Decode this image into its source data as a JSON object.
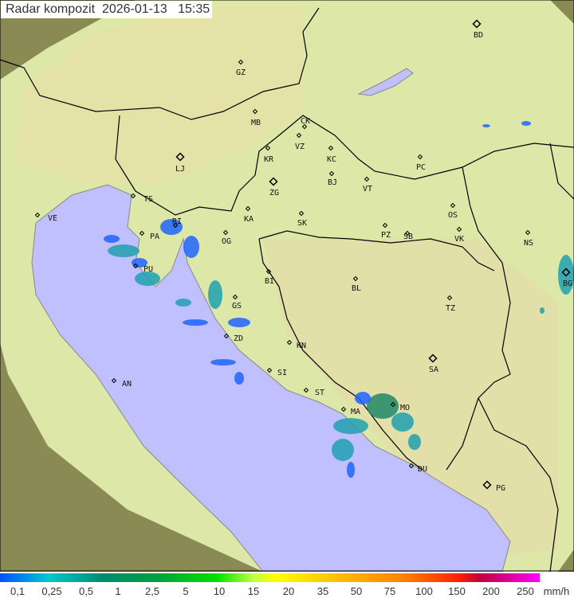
{
  "title": "Radar kompozit  2026-01-13   15:35",
  "colors": {
    "sea": "#c0c0ff",
    "land": "#dde8a8",
    "outside": "#8a8a55",
    "border": "#000000",
    "coast": "#888888",
    "rain_light": "#1e64ff",
    "rain_mid": "#20a0b0",
    "rain_heavy": "#208868"
  },
  "cities": [
    {
      "code": "GZ",
      "capital": false
    },
    {
      "code": "BD",
      "capital": true
    },
    {
      "code": "MB",
      "capital": false
    },
    {
      "code": "CK",
      "capital": false
    },
    {
      "code": "VZ",
      "capital": false
    },
    {
      "code": "KR",
      "capital": false
    },
    {
      "code": "KC",
      "capital": false
    },
    {
      "code": "PC",
      "capital": false
    },
    {
      "code": "LJ",
      "capital": true
    },
    {
      "code": "BJ",
      "capital": false
    },
    {
      "code": "ZG",
      "capital": true
    },
    {
      "code": "VT",
      "capital": false
    },
    {
      "code": "TS",
      "capital": false
    },
    {
      "code": "VE",
      "capital": false
    },
    {
      "code": "KA",
      "capital": false
    },
    {
      "code": "SK",
      "capital": false
    },
    {
      "code": "OS",
      "capital": false
    },
    {
      "code": "RI",
      "capital": false
    },
    {
      "code": "PZ",
      "capital": false
    },
    {
      "code": "SB",
      "capital": false
    },
    {
      "code": "VK",
      "capital": false
    },
    {
      "code": "NS",
      "capital": false
    },
    {
      "code": "PA",
      "capital": false
    },
    {
      "code": "OG",
      "capital": false
    },
    {
      "code": "PU",
      "capital": false
    },
    {
      "code": "BI",
      "capital": false
    },
    {
      "code": "BL",
      "capital": false
    },
    {
      "code": "BG",
      "capital": true
    },
    {
      "code": "GS",
      "capital": false
    },
    {
      "code": "TZ",
      "capital": false
    },
    {
      "code": "ZD",
      "capital": false
    },
    {
      "code": "KN",
      "capital": false
    },
    {
      "code": "SA",
      "capital": true
    },
    {
      "code": "AN",
      "capital": false
    },
    {
      "code": "SI",
      "capital": false
    },
    {
      "code": "ST",
      "capital": false
    },
    {
      "code": "MA",
      "capital": false
    },
    {
      "code": "MO",
      "capital": false
    },
    {
      "code": "DU",
      "capital": false
    },
    {
      "code": "PG",
      "capital": true
    }
  ],
  "legend": {
    "unit": "mm/h",
    "labels": [
      "0,1",
      "0,25",
      "0,5",
      "1",
      "2,5",
      "5",
      "10",
      "15",
      "20",
      "35",
      "50",
      "75",
      "100",
      "150",
      "200",
      "250"
    ]
  }
}
